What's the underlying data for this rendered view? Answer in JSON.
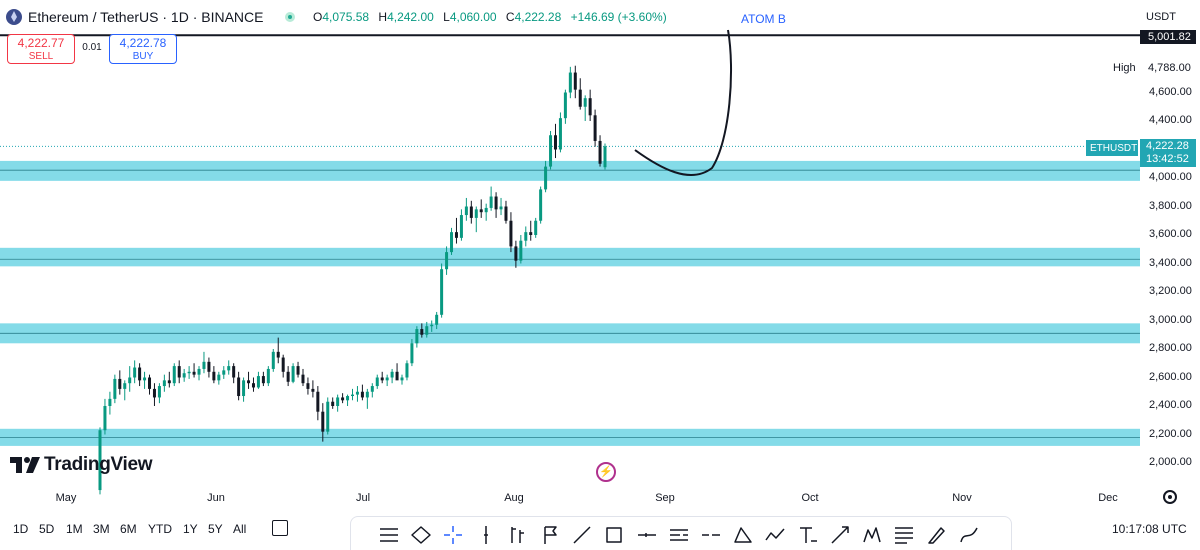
{
  "header": {
    "symbol_title": "Ethereum / TetherUS · 1D · BINANCE",
    "ohlc": [
      {
        "key": "O",
        "value": "4,075.58"
      },
      {
        "key": "H",
        "value": "4,242.00"
      },
      {
        "key": "L",
        "value": "4,060.00"
      },
      {
        "key": "C",
        "value": "4,222.28"
      },
      {
        "key": "",
        "value": "+146.69 (+3.60%)"
      }
    ],
    "annotation": "ATOM B",
    "currency": "USDT"
  },
  "trade": {
    "sell_price": "4,222.77",
    "sell_label": "SELL",
    "spread": "0.01",
    "buy_price": "4,222.78",
    "buy_label": "BUY"
  },
  "price_axis": {
    "tick_labels": [
      "4,600.00",
      "4,400.00",
      "4,000.00",
      "3,800.00",
      "3,600.00",
      "3,400.00",
      "3,200.00",
      "3,000.00",
      "2,800.00",
      "2,600.00",
      "2,400.00",
      "2,200.00",
      "2,000.00"
    ],
    "top_line_label": "5,001.82",
    "high_label": "High",
    "high_value": "4,788.00",
    "symbol_tag": "ETHUSDT",
    "last_price": "4,222.28",
    "countdown": "13:42:52"
  },
  "time_axis": {
    "months": [
      "May",
      "Jun",
      "Jul",
      "Aug",
      "Sep",
      "Oct",
      "Nov",
      "Dec"
    ]
  },
  "logo": {
    "text": "TradingView"
  },
  "bottom": {
    "timeframes": [
      "1D",
      "5D",
      "1M",
      "3M",
      "6M",
      "YTD",
      "1Y",
      "5Y",
      "All"
    ],
    "clock": "10:17:08 UTC"
  },
  "colors": {
    "up": "#089981",
    "down": "#131722",
    "zone": "#84dbe8",
    "zone_line": "#2a7f8c",
    "accent_blue": "#2962ff",
    "sell_red": "#f23645",
    "last_price": "#22a6b3"
  },
  "icons": [
    "trend-line-icon",
    "ellipse-icon",
    "crosshair-icon",
    "vertical-line-icon",
    "bars-pattern-icon",
    "flag-icon",
    "line-icon",
    "rectangle-icon",
    "horizontal-line-icon",
    "dashed-line-icon",
    "ray-icon",
    "triangle-icon",
    "path-icon",
    "text-icon",
    "arrow-icon",
    "pattern-icon",
    "fib-icon",
    "brush-icon",
    "curve-icon"
  ],
  "chart_data": {
    "type": "candlestick",
    "title": "Ethereum / TetherUS · 1D · BINANCE",
    "x_range": [
      "May",
      "Dec"
    ],
    "ylim": [
      1950,
      5100
    ],
    "grid": false,
    "horizontal_lines": [
      5001.82
    ],
    "zones": [
      {
        "from": 3980,
        "to": 4120,
        "mid": 4055
      },
      {
        "from": 3380,
        "to": 3510,
        "mid": 3430
      },
      {
        "from": 2840,
        "to": 2980,
        "mid": 2910
      },
      {
        "from": 2120,
        "to": 2240,
        "mid": 2180
      }
    ],
    "candles": [
      [
        1810,
        2250,
        1780,
        2230
      ],
      [
        2230,
        2450,
        2200,
        2400
      ],
      [
        2400,
        2500,
        2340,
        2450
      ],
      [
        2450,
        2620,
        2420,
        2590
      ],
      [
        2590,
        2650,
        2480,
        2520
      ],
      [
        2520,
        2580,
        2440,
        2560
      ],
      [
        2560,
        2680,
        2500,
        2600
      ],
      [
        2600,
        2720,
        2560,
        2670
      ],
      [
        2670,
        2700,
        2540,
        2580
      ],
      [
        2580,
        2640,
        2520,
        2600
      ],
      [
        2600,
        2620,
        2480,
        2520
      ],
      [
        2520,
        2560,
        2400,
        2460
      ],
      [
        2460,
        2560,
        2420,
        2540
      ],
      [
        2540,
        2620,
        2500,
        2580
      ],
      [
        2580,
        2640,
        2530,
        2560
      ],
      [
        2560,
        2700,
        2540,
        2680
      ],
      [
        2680,
        2720,
        2560,
        2600
      ],
      [
        2600,
        2660,
        2570,
        2630
      ],
      [
        2630,
        2680,
        2590,
        2640
      ],
      [
        2640,
        2700,
        2600,
        2620
      ],
      [
        2620,
        2680,
        2580,
        2660
      ],
      [
        2660,
        2780,
        2630,
        2710
      ],
      [
        2710,
        2740,
        2600,
        2640
      ],
      [
        2640,
        2680,
        2560,
        2580
      ],
      [
        2580,
        2640,
        2550,
        2620
      ],
      [
        2620,
        2680,
        2590,
        2650
      ],
      [
        2650,
        2720,
        2620,
        2680
      ],
      [
        2680,
        2700,
        2560,
        2600
      ],
      [
        2600,
        2640,
        2440,
        2470
      ],
      [
        2470,
        2600,
        2430,
        2580
      ],
      [
        2580,
        2640,
        2520,
        2560
      ],
      [
        2560,
        2600,
        2500,
        2530
      ],
      [
        2530,
        2640,
        2520,
        2610
      ],
      [
        2610,
        2640,
        2540,
        2560
      ],
      [
        2560,
        2680,
        2540,
        2660
      ],
      [
        2660,
        2800,
        2640,
        2780
      ],
      [
        2780,
        2880,
        2700,
        2740
      ],
      [
        2740,
        2760,
        2600,
        2640
      ],
      [
        2640,
        2680,
        2540,
        2570
      ],
      [
        2570,
        2700,
        2560,
        2680
      ],
      [
        2680,
        2710,
        2600,
        2620
      ],
      [
        2620,
        2660,
        2540,
        2560
      ],
      [
        2560,
        2600,
        2480,
        2520
      ],
      [
        2520,
        2580,
        2460,
        2500
      ],
      [
        2500,
        2540,
        2300,
        2360
      ],
      [
        2360,
        2420,
        2150,
        2220
      ],
      [
        2220,
        2460,
        2200,
        2430
      ],
      [
        2430,
        2460,
        2380,
        2400
      ],
      [
        2400,
        2480,
        2360,
        2460
      ],
      [
        2460,
        2490,
        2420,
        2440
      ],
      [
        2440,
        2480,
        2400,
        2470
      ],
      [
        2470,
        2520,
        2440,
        2480
      ],
      [
        2480,
        2540,
        2430,
        2500
      ],
      [
        2500,
        2550,
        2440,
        2460
      ],
      [
        2460,
        2520,
        2380,
        2500
      ],
      [
        2500,
        2560,
        2460,
        2540
      ],
      [
        2540,
        2620,
        2520,
        2600
      ],
      [
        2600,
        2640,
        2560,
        2580
      ],
      [
        2580,
        2620,
        2540,
        2600
      ],
      [
        2600,
        2660,
        2560,
        2640
      ],
      [
        2640,
        2700,
        2600,
        2580
      ],
      [
        2580,
        2620,
        2550,
        2600
      ],
      [
        2600,
        2720,
        2580,
        2700
      ],
      [
        2700,
        2870,
        2680,
        2840
      ],
      [
        2840,
        2960,
        2810,
        2940
      ],
      [
        2940,
        2980,
        2880,
        2900
      ],
      [
        2900,
        2990,
        2880,
        2960
      ],
      [
        2960,
        3000,
        2920,
        2970
      ],
      [
        2970,
        3060,
        2940,
        3040
      ],
      [
        3040,
        3400,
        3020,
        3360
      ],
      [
        3360,
        3520,
        3320,
        3480
      ],
      [
        3480,
        3650,
        3460,
        3620
      ],
      [
        3620,
        3720,
        3540,
        3580
      ],
      [
        3580,
        3780,
        3560,
        3740
      ],
      [
        3740,
        3860,
        3700,
        3800
      ],
      [
        3800,
        3840,
        3680,
        3720
      ],
      [
        3720,
        3800,
        3620,
        3780
      ],
      [
        3780,
        3850,
        3720,
        3760
      ],
      [
        3760,
        3820,
        3700,
        3790
      ],
      [
        3790,
        3940,
        3770,
        3870
      ],
      [
        3870,
        3900,
        3720,
        3780
      ],
      [
        3780,
        3860,
        3740,
        3800
      ],
      [
        3800,
        3840,
        3680,
        3700
      ],
      [
        3700,
        3760,
        3480,
        3520
      ],
      [
        3520,
        3560,
        3370,
        3420
      ],
      [
        3420,
        3600,
        3400,
        3560
      ],
      [
        3560,
        3660,
        3520,
        3620
      ],
      [
        3620,
        3700,
        3560,
        3600
      ],
      [
        3600,
        3720,
        3580,
        3700
      ],
      [
        3700,
        3940,
        3680,
        3920
      ],
      [
        3920,
        4120,
        3900,
        4080
      ],
      [
        4080,
        4330,
        4060,
        4300
      ],
      [
        4300,
        4380,
        4140,
        4200
      ],
      [
        4200,
        4460,
        4180,
        4420
      ],
      [
        4420,
        4620,
        4380,
        4600
      ],
      [
        4600,
        4780,
        4560,
        4740
      ],
      [
        4740,
        4788,
        4560,
        4620
      ],
      [
        4620,
        4700,
        4480,
        4500
      ],
      [
        4500,
        4580,
        4400,
        4560
      ],
      [
        4560,
        4620,
        4400,
        4440
      ],
      [
        4440,
        4480,
        4220,
        4260
      ],
      [
        4260,
        4300,
        4080,
        4100
      ],
      [
        4075.58,
        4242,
        4060,
        4222.28
      ]
    ],
    "last_price": 4222.28,
    "high": 4788.0,
    "projection_curve": "hand-drawn curve dipping to ~4,000 then rising above 5,001.82"
  }
}
